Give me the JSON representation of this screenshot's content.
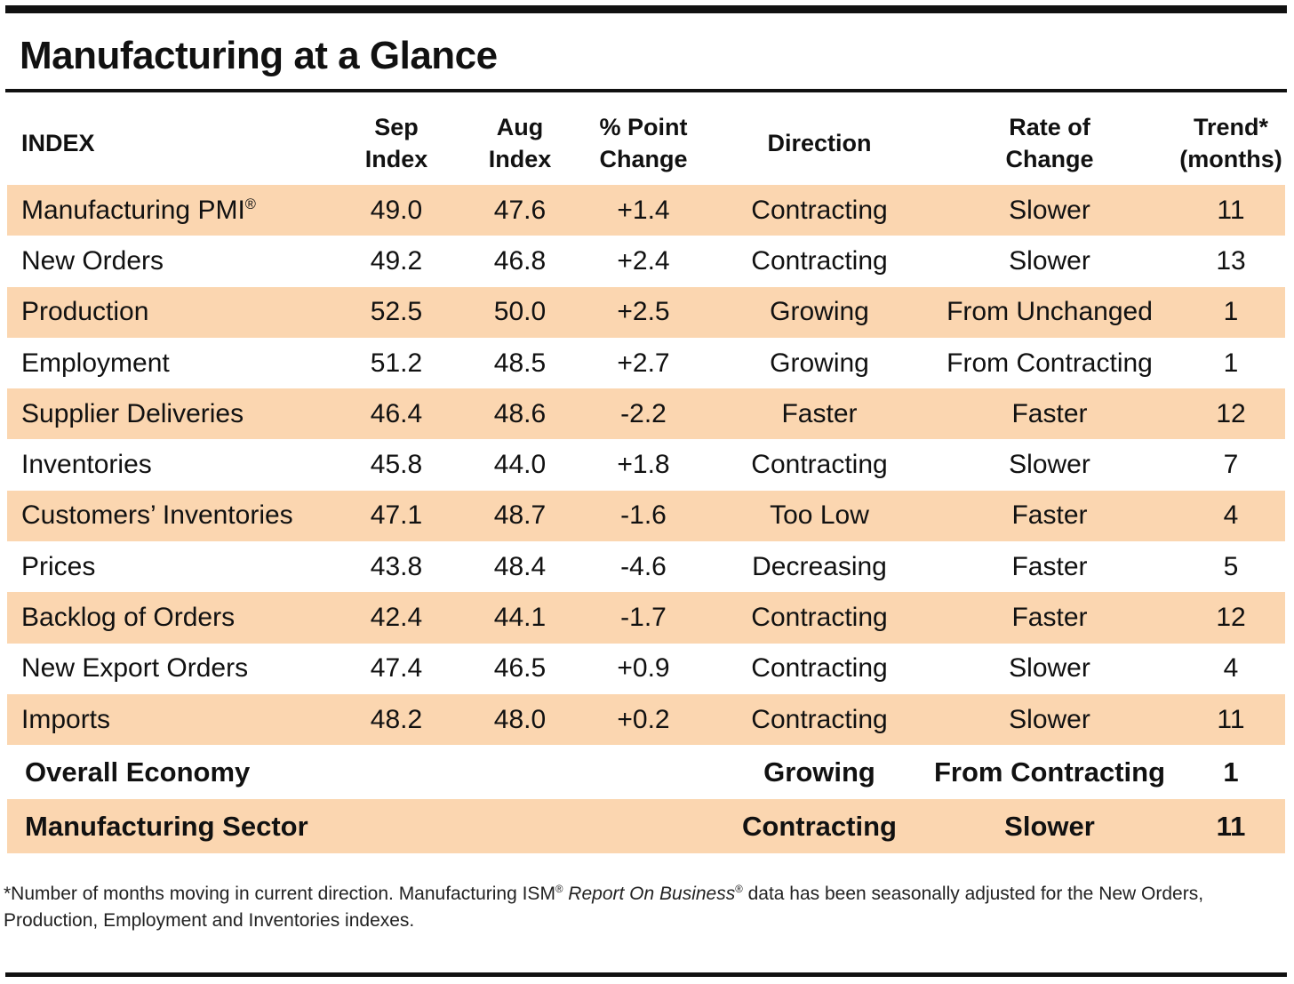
{
  "title": "Manufacturing at a Glance",
  "header": {
    "index": "INDEX",
    "sep_1": "Sep",
    "sep_2": "Index",
    "aug_1": "Aug",
    "aug_2": "Index",
    "chg_1": "% Point",
    "chg_2": "Change",
    "direction": "Direction",
    "rate_1": "Rate of",
    "rate_2": "Change",
    "trend_1": "Trend*",
    "trend_2": "(months)"
  },
  "rows": [
    {
      "name": "Manufacturing PMI",
      "reg": "®",
      "sep": "49.0",
      "aug": "47.6",
      "change": "+1.4",
      "direction": "Contracting",
      "rate": "Slower",
      "trend": "11"
    },
    {
      "name": "New Orders",
      "reg": "",
      "sep": "49.2",
      "aug": "46.8",
      "change": "+2.4",
      "direction": "Contracting",
      "rate": "Slower",
      "trend": "13"
    },
    {
      "name": "Production",
      "reg": "",
      "sep": "52.5",
      "aug": "50.0",
      "change": "+2.5",
      "direction": "Growing",
      "rate": "From Unchanged",
      "trend": "1"
    },
    {
      "name": "Employment",
      "reg": "",
      "sep": "51.2",
      "aug": "48.5",
      "change": "+2.7",
      "direction": "Growing",
      "rate": "From Contracting",
      "trend": "1"
    },
    {
      "name": "Supplier Deliveries",
      "reg": "",
      "sep": "46.4",
      "aug": "48.6",
      "change": "-2.2",
      "direction": "Faster",
      "rate": "Faster",
      "trend": "12"
    },
    {
      "name": "Inventories",
      "reg": "",
      "sep": "45.8",
      "aug": "44.0",
      "change": "+1.8",
      "direction": "Contracting",
      "rate": "Slower",
      "trend": "7"
    },
    {
      "name": "Customers’ Inventories",
      "reg": "",
      "sep": "47.1",
      "aug": "48.7",
      "change": "-1.6",
      "direction": "Too Low",
      "rate": "Faster",
      "trend": "4"
    },
    {
      "name": "Prices",
      "reg": "",
      "sep": "43.8",
      "aug": "48.4",
      "change": "-4.6",
      "direction": "Decreasing",
      "rate": "Faster",
      "trend": "5"
    },
    {
      "name": "Backlog of Orders",
      "reg": "",
      "sep": "42.4",
      "aug": "44.1",
      "change": "-1.7",
      "direction": "Contracting",
      "rate": "Faster",
      "trend": "12"
    },
    {
      "name": "New Export Orders",
      "reg": "",
      "sep": "47.4",
      "aug": "46.5",
      "change": "+0.9",
      "direction": "Contracting",
      "rate": "Slower",
      "trend": "4"
    },
    {
      "name": "Imports",
      "reg": "",
      "sep": "48.2",
      "aug": "48.0",
      "change": "+0.2",
      "direction": "Contracting",
      "rate": "Slower",
      "trend": "11"
    }
  ],
  "summary": [
    {
      "name": "Overall Economy",
      "direction": "Growing",
      "rate": "From Contracting",
      "trend": "1"
    },
    {
      "name": "Manufacturing Sector",
      "direction": "Contracting",
      "rate": "Slower",
      "trend": "11"
    }
  ],
  "footnote": {
    "part1": "*Number of months moving in current direction. Manufacturing ISM",
    "reg1": "®",
    "italic": "Report On Business",
    "reg2": "®",
    "part2": " data has been seasonally adjusted for the New Orders, Production, Employment and Inventories indexes."
  },
  "colors": {
    "row_shade": "#fbd6b0",
    "rule": "#111111"
  }
}
